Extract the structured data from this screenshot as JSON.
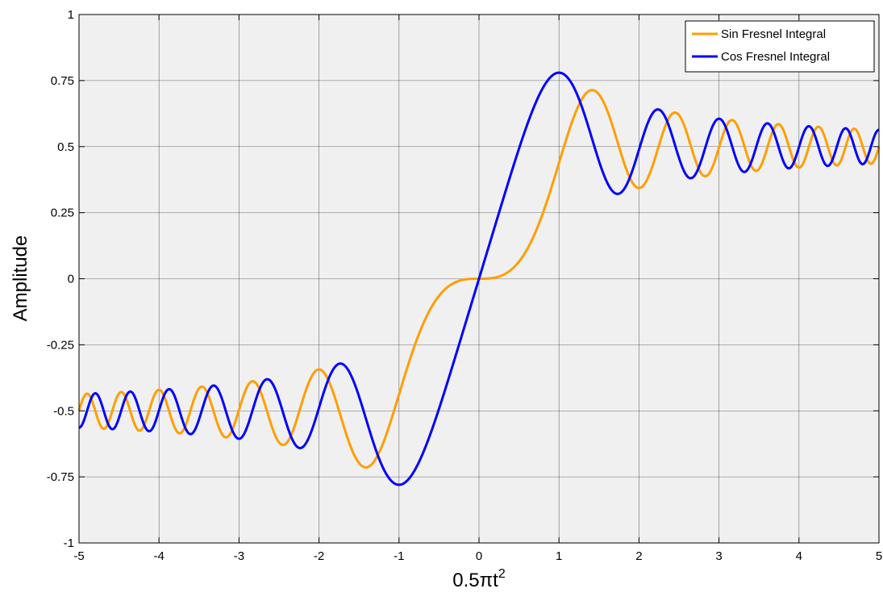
{
  "chart_data": {
    "type": "line",
    "title": "",
    "xlabel": "0.5πt",
    "xlabel_superscript": "2",
    "ylabel": "Amplitude",
    "xlim": [
      -5,
      5
    ],
    "ylim": [
      -1,
      1
    ],
    "x_ticks": [
      -5,
      -4,
      -3,
      -2,
      -1,
      0,
      1,
      2,
      3,
      4,
      5
    ],
    "x_tick_labels": [
      "-5",
      "-4",
      "-3",
      "-2",
      "-1",
      "0",
      "1",
      "2",
      "3",
      "4",
      "5"
    ],
    "y_ticks": [
      -1,
      -0.75,
      -0.5,
      -0.25,
      0,
      0.25,
      0.5,
      0.75,
      1
    ],
    "y_tick_labels": [
      "-1",
      "-0.75",
      "-0.5",
      "-0.25",
      "0",
      "0.25",
      "0.5",
      "0.75",
      "1"
    ],
    "grid": true,
    "legend_position": "top-right",
    "colors": {
      "background": "#f0f0f0",
      "grid": "#000000",
      "axes": "#000000"
    },
    "x_range": [
      -5,
      5
    ],
    "series": [
      {
        "name": "Sin Fresnel Integral",
        "color": "#ff9e00",
        "function": "S"
      },
      {
        "name": "Cos Fresnel Integral",
        "color": "#0000ff",
        "function": "C"
      }
    ]
  }
}
